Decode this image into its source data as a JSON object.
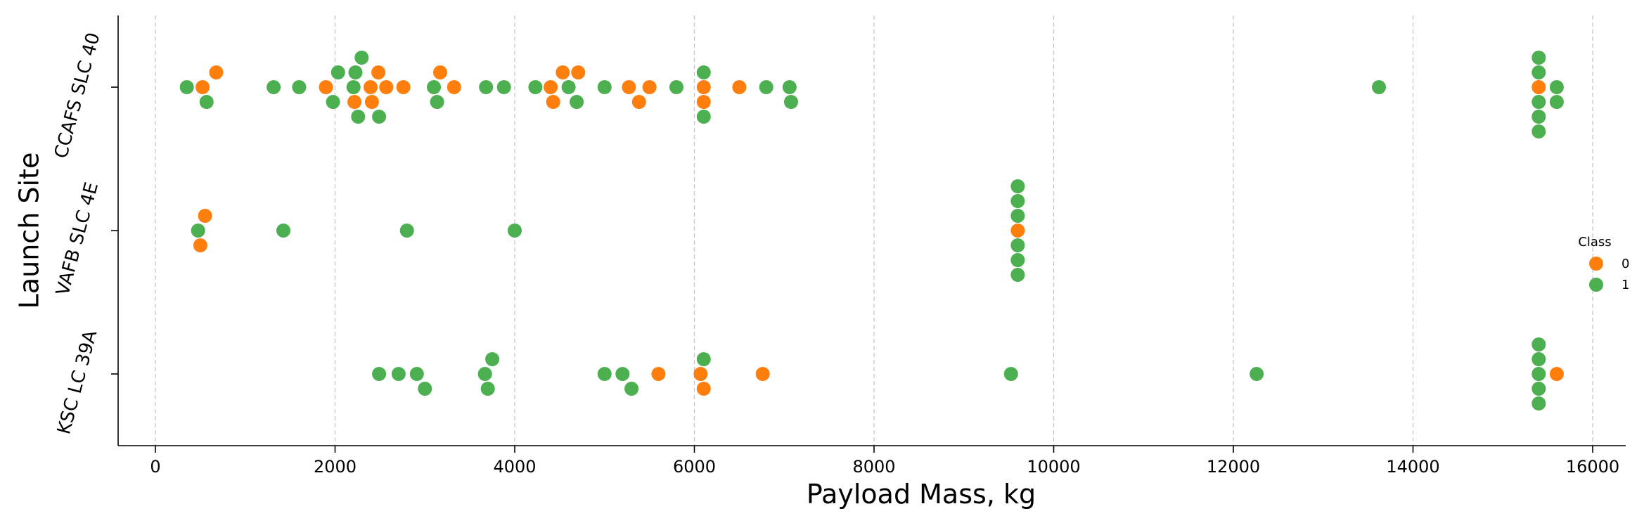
{
  "chart_data": {
    "type": "scatter",
    "subtype": "swarm",
    "title": "",
    "xlabel": "Payload Mass, kg",
    "ylabel": "Launch Site",
    "xlim": [
      -500,
      16400
    ],
    "xticks": [
      0,
      2000,
      4000,
      6000,
      8000,
      10000,
      12000,
      14000,
      16000
    ],
    "xtick_labels": [
      "0",
      "2000",
      "4000",
      "6000",
      "8000",
      "10000",
      "12000",
      "14000",
      "16000"
    ],
    "categories": [
      "CCAFS SLC 40",
      "VAFB SLC 4E",
      "KSC LC 39A"
    ],
    "grid": "vertical dashed",
    "legend": {
      "title": "Class",
      "placement": "right",
      "entries": [
        {
          "label": "0",
          "color": "#ff7f0e"
        },
        {
          "label": "1",
          "color": "#4caf50"
        }
      ]
    },
    "series": [
      {
        "class": "0",
        "color": "#ff7f0e",
        "points": [
          {
            "site": "CCAFS SLC 40",
            "x": 525
          },
          {
            "site": "CCAFS SLC 40",
            "x": 677
          },
          {
            "site": "CCAFS SLC 40",
            "x": 1898
          },
          {
            "site": "CCAFS SLC 40",
            "x": 2216
          },
          {
            "site": "CCAFS SLC 40",
            "x": 2395
          },
          {
            "site": "CCAFS SLC 40",
            "x": 2410
          },
          {
            "site": "CCAFS SLC 40",
            "x": 2482
          },
          {
            "site": "CCAFS SLC 40",
            "x": 2570
          },
          {
            "site": "CCAFS SLC 40",
            "x": 2760
          },
          {
            "site": "CCAFS SLC 40",
            "x": 3170
          },
          {
            "site": "CCAFS SLC 40",
            "x": 3325
          },
          {
            "site": "CCAFS SLC 40",
            "x": 4400
          },
          {
            "site": "CCAFS SLC 40",
            "x": 4428
          },
          {
            "site": "CCAFS SLC 40",
            "x": 4535
          },
          {
            "site": "CCAFS SLC 40",
            "x": 4707
          },
          {
            "site": "CCAFS SLC 40",
            "x": 5271
          },
          {
            "site": "CCAFS SLC 40",
            "x": 5384
          },
          {
            "site": "CCAFS SLC 40",
            "x": 5500
          },
          {
            "site": "CCAFS SLC 40",
            "x": 6104
          },
          {
            "site": "CCAFS SLC 40",
            "x": 6104
          },
          {
            "site": "CCAFS SLC 40",
            "x": 6500
          },
          {
            "site": "CCAFS SLC 40",
            "x": 15400
          },
          {
            "site": "VAFB SLC 4E",
            "x": 500
          },
          {
            "site": "VAFB SLC 4E",
            "x": 553
          },
          {
            "site": "VAFB SLC 4E",
            "x": 9600
          },
          {
            "site": "KSC LC 39A",
            "x": 5600
          },
          {
            "site": "KSC LC 39A",
            "x": 6070
          },
          {
            "site": "KSC LC 39A",
            "x": 6104
          },
          {
            "site": "KSC LC 39A",
            "x": 6761
          },
          {
            "site": "KSC LC 39A",
            "x": 15600
          }
        ]
      },
      {
        "class": "1",
        "color": "#4caf50",
        "points": [
          {
            "site": "CCAFS SLC 40",
            "x": 350
          },
          {
            "site": "CCAFS SLC 40",
            "x": 570
          },
          {
            "site": "CCAFS SLC 40",
            "x": 1316
          },
          {
            "site": "CCAFS SLC 40",
            "x": 1600
          },
          {
            "site": "CCAFS SLC 40",
            "x": 1977
          },
          {
            "site": "CCAFS SLC 40",
            "x": 2034
          },
          {
            "site": "CCAFS SLC 40",
            "x": 2205
          },
          {
            "site": "CCAFS SLC 40",
            "x": 2227
          },
          {
            "site": "CCAFS SLC 40",
            "x": 2257
          },
          {
            "site": "CCAFS SLC 40",
            "x": 2296
          },
          {
            "site": "CCAFS SLC 40",
            "x": 2490
          },
          {
            "site": "CCAFS SLC 40",
            "x": 3100
          },
          {
            "site": "CCAFS SLC 40",
            "x": 3136
          },
          {
            "site": "CCAFS SLC 40",
            "x": 3681
          },
          {
            "site": "CCAFS SLC 40",
            "x": 3880
          },
          {
            "site": "CCAFS SLC 40",
            "x": 4230
          },
          {
            "site": "CCAFS SLC 40",
            "x": 4600
          },
          {
            "site": "CCAFS SLC 40",
            "x": 4690
          },
          {
            "site": "CCAFS SLC 40",
            "x": 5000
          },
          {
            "site": "CCAFS SLC 40",
            "x": 5800
          },
          {
            "site": "CCAFS SLC 40",
            "x": 6104
          },
          {
            "site": "CCAFS SLC 40",
            "x": 6104
          },
          {
            "site": "CCAFS SLC 40",
            "x": 6800
          },
          {
            "site": "CCAFS SLC 40",
            "x": 7060
          },
          {
            "site": "CCAFS SLC 40",
            "x": 7076
          },
          {
            "site": "CCAFS SLC 40",
            "x": 13620
          },
          {
            "site": "CCAFS SLC 40",
            "x": 15400
          },
          {
            "site": "CCAFS SLC 40",
            "x": 15400
          },
          {
            "site": "CCAFS SLC 40",
            "x": 15400
          },
          {
            "site": "CCAFS SLC 40",
            "x": 15400
          },
          {
            "site": "CCAFS SLC 40",
            "x": 15400
          },
          {
            "site": "CCAFS SLC 40",
            "x": 15600
          },
          {
            "site": "CCAFS SLC 40",
            "x": 15600
          },
          {
            "site": "VAFB SLC 4E",
            "x": 475
          },
          {
            "site": "VAFB SLC 4E",
            "x": 1425
          },
          {
            "site": "VAFB SLC 4E",
            "x": 2800
          },
          {
            "site": "VAFB SLC 4E",
            "x": 4000
          },
          {
            "site": "VAFB SLC 4E",
            "x": 9600
          },
          {
            "site": "VAFB SLC 4E",
            "x": 9600
          },
          {
            "site": "VAFB SLC 4E",
            "x": 9600
          },
          {
            "site": "VAFB SLC 4E",
            "x": 9600
          },
          {
            "site": "VAFB SLC 4E",
            "x": 9600
          },
          {
            "site": "VAFB SLC 4E",
            "x": 9600
          },
          {
            "site": "KSC LC 39A",
            "x": 2490
          },
          {
            "site": "KSC LC 39A",
            "x": 2708
          },
          {
            "site": "KSC LC 39A",
            "x": 2910
          },
          {
            "site": "KSC LC 39A",
            "x": 3000
          },
          {
            "site": "KSC LC 39A",
            "x": 3669
          },
          {
            "site": "KSC LC 39A",
            "x": 3700
          },
          {
            "site": "KSC LC 39A",
            "x": 3750
          },
          {
            "site": "KSC LC 39A",
            "x": 5000
          },
          {
            "site": "KSC LC 39A",
            "x": 5200
          },
          {
            "site": "KSC LC 39A",
            "x": 5300
          },
          {
            "site": "KSC LC 39A",
            "x": 6104
          },
          {
            "site": "KSC LC 39A",
            "x": 9525
          },
          {
            "site": "KSC LC 39A",
            "x": 12259
          },
          {
            "site": "KSC LC 39A",
            "x": 15400
          },
          {
            "site": "KSC LC 39A",
            "x": 15400
          },
          {
            "site": "KSC LC 39A",
            "x": 15400
          },
          {
            "site": "KSC LC 39A",
            "x": 15400
          },
          {
            "site": "KSC LC 39A",
            "x": 15400
          }
        ]
      }
    ]
  }
}
